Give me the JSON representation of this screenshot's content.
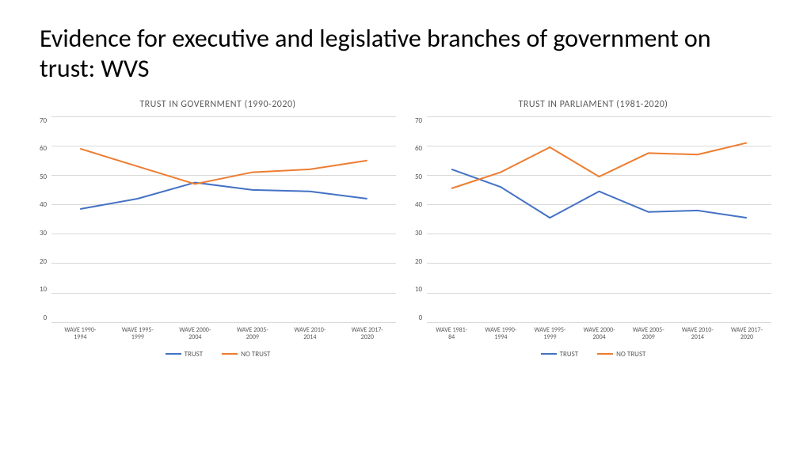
{
  "slide": {
    "title": "Evidence for executive and legislative branches of government on trust: WVS"
  },
  "charts": [
    {
      "type": "line",
      "title": "TRUST IN GOVERNMENT (1990-2020)",
      "title_fontsize": 12,
      "ylim": [
        0,
        70
      ],
      "ytick_step": 10,
      "background_color": "#ffffff",
      "grid_color": "#d9d9d9",
      "label_fontsize": 9,
      "categories": [
        "WAVE 1990-1994",
        "WAVE 1995-1999",
        "WAVE 2000-2004",
        "WAVE 2005-2009",
        "WAVE 2010-2014",
        "WAVE 2017-2020"
      ],
      "series": [
        {
          "name": "TRUST",
          "color": "#4472c4",
          "line_width": 2,
          "values": [
            38.5,
            42,
            47.5,
            45,
            44.5,
            42
          ]
        },
        {
          "name": "NO TRUST",
          "color": "#ed7d31",
          "line_width": 2,
          "values": [
            59,
            53,
            47,
            51,
            52,
            55
          ]
        }
      ]
    },
    {
      "type": "line",
      "title": "TRUST IN PARLIAMENT (1981-2020)",
      "title_fontsize": 12,
      "ylim": [
        0,
        70
      ],
      "ytick_step": 10,
      "background_color": "#ffffff",
      "grid_color": "#d9d9d9",
      "label_fontsize": 9,
      "categories": [
        "WAVE 1981-84",
        "WAVE 1990-1994",
        "WAVE 1995-1999",
        "WAVE 2000-2004",
        "WAVE 2005-2009",
        "WAVE 2010-2014",
        "WAVE 2017-2020"
      ],
      "series": [
        {
          "name": "TRUST",
          "color": "#4472c4",
          "line_width": 2,
          "values": [
            52,
            46,
            35.5,
            44.5,
            37.5,
            38,
            35.5
          ]
        },
        {
          "name": "NO TRUST",
          "color": "#ed7d31",
          "line_width": 2,
          "values": [
            45.5,
            51,
            59.5,
            49.5,
            57.5,
            57,
            61
          ]
        }
      ]
    }
  ]
}
